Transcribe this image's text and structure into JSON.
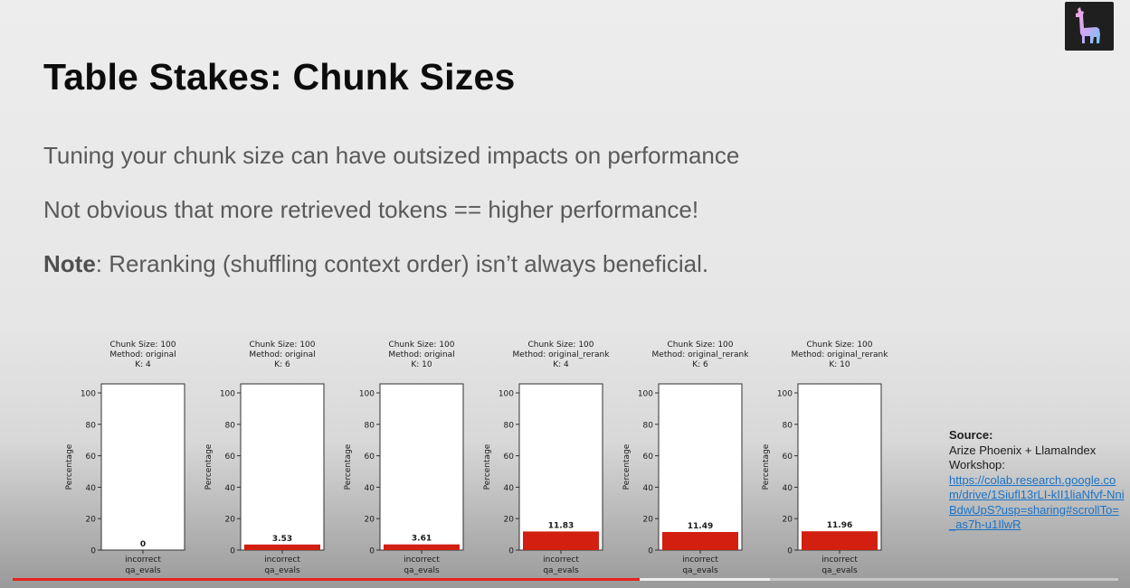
{
  "slide": {
    "title": "Table Stakes: Chunk Sizes",
    "bullets": {
      "b1": "Tuning your chunk size can have outsized impacts on performance",
      "b2": "Not obvious that more retrieved tokens == higher performance!",
      "b3_bold": "Note",
      "b3_rest": ": Reranking (shuffling context order) isn’t always beneficial."
    }
  },
  "source": {
    "heading": "Source:",
    "text": "Arize Phoenix + LlamaIndex Workshop:",
    "link": "https://colab.research.google.com/drive/1Siufl13rLI-kII1liaNfvf-NniBdwUpS?usp=sharing#scrollTo=_as7h-u1IlwR"
  },
  "video": {
    "progress": 0.567,
    "buffered": 0.685
  },
  "colors": {
    "bar": "#d21f0f",
    "progress": "#e5221b",
    "logo_bg": "#1f1f1f"
  },
  "logo": {
    "icon": "llama-icon"
  },
  "chart_data": [
    {
      "type": "bar",
      "title_lines": [
        "Chunk Size: 100",
        "Method: original",
        "K: 4"
      ],
      "categories": [
        "incorrect"
      ],
      "xlabel": "qa_evals",
      "ylabel": "Percentage",
      "values": [
        0
      ],
      "value_labels": [
        "0"
      ],
      "ylim": [
        0,
        100
      ],
      "yticks": [
        0,
        20,
        40,
        60,
        80,
        100
      ],
      "grid": false
    },
    {
      "type": "bar",
      "title_lines": [
        "Chunk Size: 100",
        "Method: original",
        "K: 6"
      ],
      "categories": [
        "incorrect"
      ],
      "xlabel": "qa_evals",
      "ylabel": "Percentage",
      "values": [
        3.53
      ],
      "value_labels": [
        "3.53"
      ],
      "ylim": [
        0,
        100
      ],
      "yticks": [
        0,
        20,
        40,
        60,
        80,
        100
      ],
      "grid": false
    },
    {
      "type": "bar",
      "title_lines": [
        "Chunk Size: 100",
        "Method: original",
        "K: 10"
      ],
      "categories": [
        "incorrect"
      ],
      "xlabel": "qa_evals",
      "ylabel": "Percentage",
      "values": [
        3.61
      ],
      "value_labels": [
        "3.61"
      ],
      "ylim": [
        0,
        100
      ],
      "yticks": [
        0,
        20,
        40,
        60,
        80,
        100
      ],
      "grid": false
    },
    {
      "type": "bar",
      "title_lines": [
        "Chunk Size: 100",
        "Method: original_rerank",
        "K: 4"
      ],
      "categories": [
        "incorrect"
      ],
      "xlabel": "qa_evals",
      "ylabel": "Percentage",
      "values": [
        11.83
      ],
      "value_labels": [
        "11.83"
      ],
      "ylim": [
        0,
        100
      ],
      "yticks": [
        0,
        20,
        40,
        60,
        80,
        100
      ],
      "grid": false
    },
    {
      "type": "bar",
      "title_lines": [
        "Chunk Size: 100",
        "Method: original_rerank",
        "K: 6"
      ],
      "categories": [
        "incorrect"
      ],
      "xlabel": "qa_evals",
      "ylabel": "Percentage",
      "values": [
        11.49
      ],
      "value_labels": [
        "11.49"
      ],
      "ylim": [
        0,
        100
      ],
      "yticks": [
        0,
        20,
        40,
        60,
        80,
        100
      ],
      "grid": false
    },
    {
      "type": "bar",
      "title_lines": [
        "Chunk Size: 100",
        "Method: original_rerank",
        "K: 10"
      ],
      "categories": [
        "incorrect"
      ],
      "xlabel": "qa_evals",
      "ylabel": "Percentage",
      "values": [
        11.96
      ],
      "value_labels": [
        "11.96"
      ],
      "ylim": [
        0,
        100
      ],
      "yticks": [
        0,
        20,
        40,
        60,
        80,
        100
      ],
      "grid": false
    }
  ]
}
